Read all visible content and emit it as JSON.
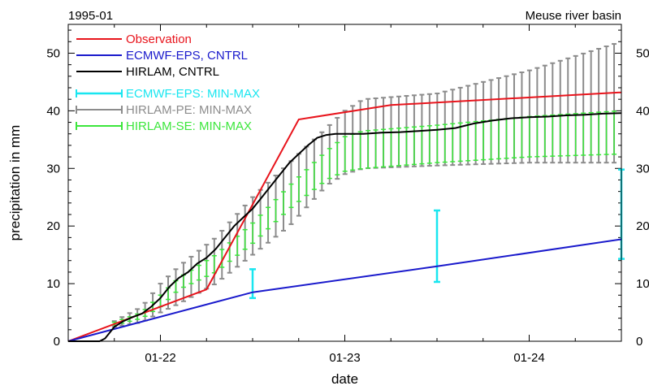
{
  "chart_data": {
    "type": "line",
    "top_left_label": "1995-01",
    "top_right_label": "Meuse river basin",
    "xlabel": "date",
    "ylabel": "precipitation in mm",
    "x_unit": "days since 1995-01-21 12:00 (hidden helper)",
    "xlim": [
      0,
      3
    ],
    "ylim": [
      0,
      55
    ],
    "x_ticks": [
      {
        "x": 0.5,
        "label": "01-22"
      },
      {
        "x": 1.5,
        "label": "01-23"
      },
      {
        "x": 2.5,
        "label": "01-24"
      }
    ],
    "y_ticks": [
      0,
      10,
      20,
      30,
      40,
      50
    ],
    "y_ticks_right": [
      0,
      10,
      20,
      30,
      40,
      50
    ],
    "legend": {
      "placement": "top-left",
      "entries": [
        {
          "label": "Observation",
          "color": "#e8141c",
          "kind": "line"
        },
        {
          "label": "ECMWF-EPS, CNTRL",
          "color": "#1a1acc",
          "kind": "line"
        },
        {
          "label": "HIRLAM, CNTRL",
          "color": "#000000",
          "kind": "line"
        },
        {
          "label": "ECMWF-EPS: MIN-MAX",
          "color": "#19e6f0",
          "kind": "errorbar"
        },
        {
          "label": "HIRLAM-PE: MIN-MAX",
          "color": "#8c8c8c",
          "kind": "errorbar"
        },
        {
          "label": "HIRLAM-SE: MIN-MAX",
          "color": "#3ce63c",
          "kind": "errorbar"
        }
      ]
    },
    "series": [
      {
        "name": "Observation",
        "color": "#e8141c",
        "x": [
          0,
          0.75,
          1.25,
          1.75,
          3.0
        ],
        "y": [
          0,
          9,
          38.5,
          41,
          43.2
        ]
      },
      {
        "name": "ECMWF-EPS, CNTRL",
        "color": "#1a1acc",
        "x": [
          0,
          1.0,
          2.0,
          3.0
        ],
        "y": [
          0,
          8.5,
          13,
          17.7
        ]
      },
      {
        "name": "HIRLAM, CNTRL",
        "color": "#000000",
        "x": [
          0,
          0.17,
          0.2,
          0.25,
          0.3,
          0.35,
          0.4,
          0.45,
          0.5,
          0.55,
          0.6,
          0.65,
          0.7,
          0.75,
          0.8,
          0.85,
          0.9,
          0.95,
          1.0,
          1.05,
          1.1,
          1.15,
          1.2,
          1.25,
          1.3,
          1.35,
          1.4,
          1.45,
          1.5,
          1.55,
          1.6,
          1.7,
          1.8,
          1.9,
          2.0,
          2.1,
          2.2,
          2.3,
          2.4,
          2.5,
          2.6,
          2.7,
          2.8,
          2.9,
          3.0
        ],
        "y": [
          0,
          0,
          0.5,
          2.5,
          3.5,
          4.2,
          4.8,
          6,
          7.5,
          9.5,
          11,
          12,
          13.5,
          14.5,
          16,
          18,
          20,
          21.5,
          23,
          25,
          27,
          29,
          31,
          32.5,
          34,
          35.3,
          35.8,
          36,
          36,
          36,
          36,
          36.2,
          36.3,
          36.5,
          36.7,
          37,
          37.8,
          38.3,
          38.7,
          38.9,
          39,
          39.2,
          39.3,
          39.5,
          39.6
        ]
      }
    ],
    "errorbars": [
      {
        "name": "ECMWF-EPS: MIN-MAX",
        "color": "#19e6f0",
        "bars": [
          {
            "x": 1.0,
            "low": 7.5,
            "high": 12.5
          },
          {
            "x": 2.0,
            "low": 10.3,
            "high": 22.7
          },
          {
            "x": 3.0,
            "low": 14.3,
            "high": 29.8
          }
        ]
      },
      {
        "name": "HIRLAM-PE: MIN-MAX",
        "color": "#8c8c8c",
        "x_start": 0.25,
        "x_end": 3.0,
        "x_step": 0.0417,
        "profile_x": [
          0.25,
          0.4,
          0.5,
          0.6,
          0.8,
          1.0,
          1.2,
          1.4,
          1.5,
          1.6,
          2.0,
          2.5,
          3.0
        ],
        "profile_low": [
          2.5,
          3.3,
          5.0,
          6.5,
          10.0,
          15.0,
          20.0,
          27.0,
          29.0,
          30.0,
          30.5,
          31.0,
          31.0
        ],
        "profile_high": [
          3.5,
          6.0,
          10.0,
          13.0,
          18.0,
          25.0,
          31.0,
          37.0,
          40.0,
          42.0,
          43.0,
          47.0,
          52.0
        ]
      },
      {
        "name": "HIRLAM-SE: MIN-MAX",
        "color": "#3ce63c",
        "x_start": 0.25,
        "x_end": 3.0,
        "x_step": 0.0417,
        "profile_x": [
          0.25,
          0.4,
          0.5,
          0.6,
          0.8,
          1.0,
          1.2,
          1.4,
          1.5,
          1.6,
          2.0,
          2.5,
          3.0
        ],
        "profile_low": [
          2.8,
          4.0,
          6.0,
          9.0,
          12.0,
          17.0,
          23.0,
          28.0,
          29.5,
          30.0,
          31.0,
          32.0,
          32.5
        ],
        "profile_high": [
          3.3,
          5.0,
          8.0,
          11.0,
          15.0,
          20.5,
          27.0,
          33.0,
          35.5,
          36.5,
          37.5,
          39.0,
          40.0
        ]
      }
    ]
  }
}
